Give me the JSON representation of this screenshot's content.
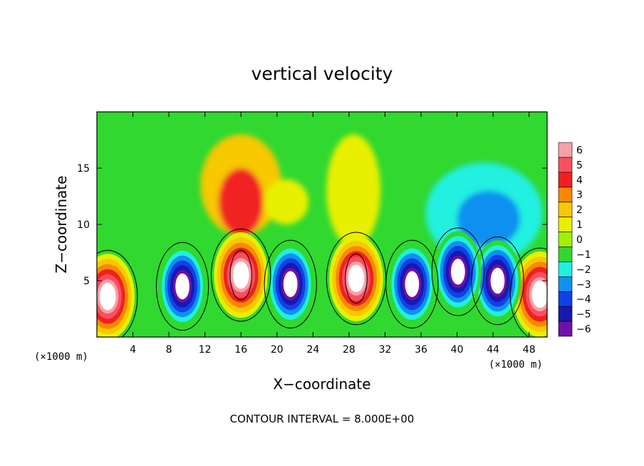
{
  "chart_data": {
    "type": "heatmap",
    "title": "vertical velocity",
    "xlabel": "X−coordinate",
    "ylabel": "Z−coordinate",
    "x_unit": "(×1000 m)",
    "y_unit": "(×1000 m)",
    "xlim": [
      0,
      50
    ],
    "ylim": [
      0,
      20
    ],
    "x_ticks": [
      4,
      8,
      12,
      16,
      20,
      24,
      28,
      32,
      36,
      40,
      44,
      48
    ],
    "x_tick_labels": [
      "4",
      "8",
      "12",
      "16",
      "20",
      "24",
      "28",
      "32",
      "36",
      "40",
      "44",
      "48"
    ],
    "y_ticks": [
      5,
      10,
      15
    ],
    "y_tick_labels": [
      "5",
      "10",
      "15"
    ],
    "colorbar": {
      "levels": [
        6,
        5,
        4,
        3,
        2,
        1,
        0,
        -1,
        -2,
        -3,
        -4,
        -5,
        -6
      ],
      "labels": [
        "6",
        "5",
        "4",
        "3",
        "2",
        "1",
        "0",
        "−1",
        "−2",
        "−3",
        "−4",
        "−5",
        "−6"
      ],
      "colors": [
        "#f8a0a8",
        "#f85060",
        "#f02020",
        "#f88800",
        "#f8c800",
        "#e8f000",
        "#a0f000",
        "#30d830",
        "#20f0e0",
        "#1090f0",
        "#1040e8",
        "#1818b0",
        "#7010a8"
      ],
      "saturated_high_color": "#ffffff",
      "saturated_low_color": "#ffffff"
    },
    "contour_interval_label": "CONTOUR INTERVAL = 8.000E+00",
    "contour_interval": 8,
    "cells": [
      {
        "x": 1.2,
        "z": 3.6,
        "w": 7.5,
        "kind": "updraft"
      },
      {
        "x": 16.0,
        "z": 5.5,
        "w": 9.5,
        "kind": "updraft"
      },
      {
        "x": 28.8,
        "z": 5.2,
        "w": 9.0,
        "kind": "updraft"
      },
      {
        "x": 49.2,
        "z": 3.8,
        "w": 7.0,
        "kind": "updraft"
      },
      {
        "x": 9.5,
        "z": 4.5,
        "w": -7.5,
        "kind": "downdraft"
      },
      {
        "x": 21.5,
        "z": 4.7,
        "w": -7.5,
        "kind": "downdraft"
      },
      {
        "x": 35.0,
        "z": 4.7,
        "w": -7.0,
        "kind": "downdraft"
      },
      {
        "x": 44.5,
        "z": 5.0,
        "w": -6.5,
        "kind": "downdraft"
      },
      {
        "x": 40.1,
        "z": 5.8,
        "w": -6.5,
        "kind": "downdraft"
      }
    ]
  }
}
